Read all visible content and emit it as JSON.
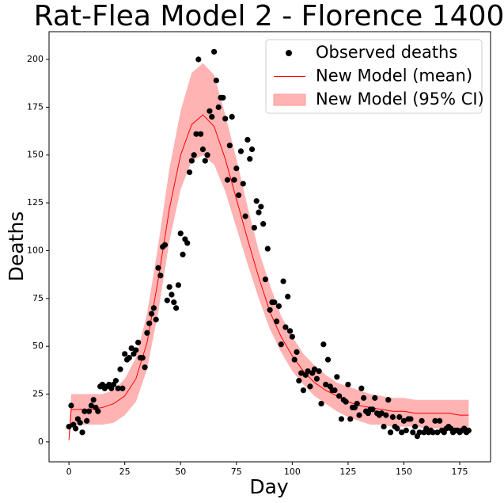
{
  "chart_data": {
    "type": "composite",
    "title": "Rat-Flea Model 2 - Florence 1400",
    "xlabel": "Day",
    "ylabel": "Deaths",
    "xlim": [
      -8.9,
      188.8
    ],
    "ylim": [
      -10.4,
      214.5
    ],
    "xticks": [
      0,
      25,
      50,
      75,
      100,
      125,
      150,
      175
    ],
    "yticks": [
      0,
      25,
      50,
      75,
      100,
      125,
      150,
      175,
      200
    ],
    "grid": false,
    "legend": "upper right",
    "series": [
      {
        "name": "Observed deaths",
        "type": "scatter",
        "color": "#000000",
        "x": [
          0,
          1,
          2,
          3,
          4,
          5,
          6,
          7,
          8,
          9,
          10,
          11,
          12,
          13,
          14,
          15,
          16,
          17,
          18,
          19,
          20,
          21,
          22,
          23,
          24,
          25,
          26,
          27,
          28,
          29,
          30,
          31,
          32,
          33,
          34,
          35,
          36,
          37,
          38,
          39,
          40,
          41,
          42,
          43,
          44,
          45,
          46,
          47,
          48,
          49,
          50,
          51,
          52,
          53,
          54,
          55,
          56,
          57,
          58,
          59,
          60,
          61,
          62,
          63,
          64,
          65,
          66,
          67,
          68,
          69,
          70,
          71,
          72,
          73,
          74,
          75,
          76,
          77,
          78,
          79,
          80,
          81,
          82,
          83,
          84,
          85,
          86,
          87,
          88,
          89,
          90,
          91,
          92,
          93,
          94,
          95,
          96,
          97,
          98,
          99,
          100,
          101,
          102,
          103,
          104,
          105,
          106,
          107,
          108,
          109,
          110,
          111,
          112,
          113,
          114,
          115,
          116,
          117,
          118,
          119,
          120,
          121,
          122,
          123,
          124,
          125,
          126,
          127,
          128,
          129,
          130,
          131,
          132,
          133,
          134,
          135,
          136,
          137,
          138,
          139,
          140,
          141,
          142,
          143,
          144,
          145,
          146,
          147,
          148,
          149,
          150,
          151,
          152,
          153,
          154,
          155,
          156,
          157,
          158,
          159,
          160,
          161,
          162,
          163,
          164,
          165,
          166,
          167,
          168,
          169,
          170,
          171,
          172,
          173,
          174,
          175,
          176,
          177,
          178,
          179
        ],
        "values": [
          8,
          19,
          9,
          7,
          12,
          10,
          5,
          16,
          11,
          16,
          19,
          22,
          18,
          16,
          29,
          30,
          28,
          29,
          30,
          28,
          30,
          32,
          28,
          38,
          28,
          46,
          43,
          44,
          49,
          46,
          48,
          52,
          44,
          44,
          39,
          57,
          62,
          67,
          70,
          64,
          91,
          87,
          102,
          103,
          74,
          81,
          77,
          73,
          70,
          82,
          109,
          98,
          106,
          104,
          141,
          147,
          150,
          161,
          200,
          161,
          153,
          147,
          150,
          173,
          170,
          204,
          189,
          175,
          180,
          180,
          169,
          137,
          155,
          170,
          137,
          143,
          129,
          152,
          135,
          118,
          158,
          148,
          153,
          112,
          126,
          120,
          123,
          114,
          85,
          101,
          69,
          73,
          73,
          63,
          71,
          51,
          84,
          60,
          76,
          58,
          55,
          43,
          47,
          32,
          36,
          27,
          35,
          37,
          29,
          36,
          38,
          33,
          37,
          20,
          51,
          30,
          43,
          29,
          27,
          27,
          34,
          24,
          12,
          22,
          21,
          30,
          12,
          18,
          18,
          20,
          14,
          28,
          23,
          16,
          15,
          17,
          17,
          23,
          15,
          14,
          15,
          8,
          14,
          22,
          5,
          13,
          8,
          7,
          13,
          5,
          11,
          6,
          12,
          12,
          5,
          8,
          3,
          5,
          11,
          5,
          7,
          5,
          6,
          5,
          11,
          5,
          11,
          6,
          5,
          7,
          8,
          7,
          5,
          6,
          6,
          5,
          6,
          7,
          5,
          6
        ]
      },
      {
        "name": "New Model (mean)",
        "type": "line",
        "color": "#ff0000",
        "x": [
          0,
          1,
          5,
          10,
          15,
          20,
          25,
          30,
          35,
          40,
          45,
          50,
          55,
          60,
          65,
          70,
          75,
          80,
          85,
          90,
          95,
          100,
          105,
          110,
          115,
          120,
          125,
          130,
          135,
          140,
          145,
          150,
          155,
          160,
          165,
          170,
          175,
          179
        ],
        "values": [
          1,
          17,
          17,
          17,
          18,
          20,
          24,
          33,
          52,
          85,
          122,
          150,
          166,
          171,
          165,
          148,
          127,
          106,
          86,
          68,
          55,
          45,
          37,
          31,
          27,
          24,
          21,
          19,
          18,
          17,
          16,
          16,
          15,
          15,
          15,
          15,
          14,
          14
        ]
      },
      {
        "name": "New Model (95% CI)",
        "type": "band",
        "color": "#ffb3b3",
        "x": [
          0,
          1,
          5,
          10,
          15,
          20,
          25,
          30,
          35,
          40,
          45,
          50,
          55,
          60,
          65,
          70,
          75,
          80,
          85,
          90,
          95,
          100,
          105,
          110,
          115,
          120,
          125,
          130,
          135,
          140,
          145,
          150,
          155,
          160,
          165,
          170,
          175,
          179
        ],
        "lower": [
          0,
          9,
          9,
          9,
          9,
          10,
          14,
          21,
          38,
          68,
          105,
          132,
          147,
          150,
          145,
          131,
          112,
          93,
          75,
          59,
          47,
          37,
          30,
          24,
          20,
          16,
          13,
          11,
          9,
          9,
          8,
          8,
          8,
          7,
          7,
          7,
          7,
          7
        ],
        "upper": [
          5,
          25,
          25,
          25,
          25,
          27,
          33,
          44,
          67,
          103,
          143,
          173,
          193,
          198,
          192,
          171,
          148,
          123,
          100,
          82,
          66,
          55,
          46,
          40,
          35,
          31,
          29,
          27,
          25,
          24,
          23,
          23,
          22,
          22,
          22,
          22,
          22,
          22
        ]
      }
    ]
  }
}
